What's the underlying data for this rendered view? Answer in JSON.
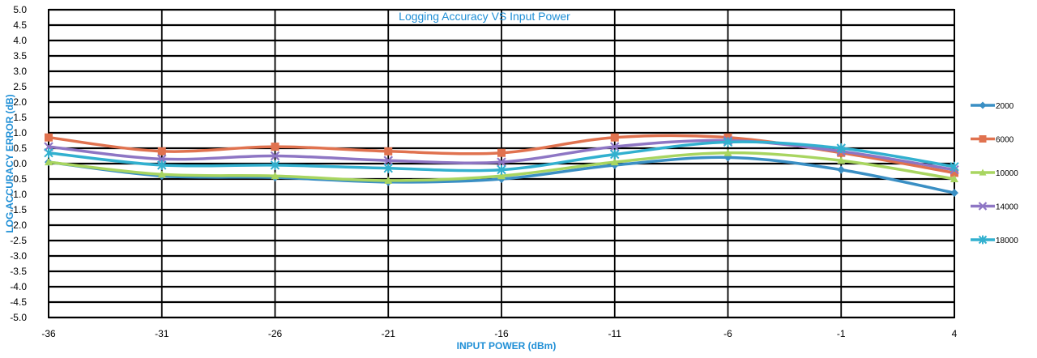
{
  "chart_data": {
    "type": "line",
    "title": "Logging Accuracy VS Input Power",
    "xlabel": "INPUT POWER (dBm)",
    "ylabel": "LOG ACCURACY ERROR (dB)",
    "x": [
      -36,
      -31,
      -26,
      -21,
      -16,
      -11,
      -6,
      -1,
      4
    ],
    "x_tick_labels": [
      "-36",
      "-31",
      "-26",
      "-21",
      "-16",
      "-11",
      "-6",
      "-1",
      "4"
    ],
    "ylim": [
      -5.0,
      5.0
    ],
    "y_tick_labels": [
      "5.0",
      "4.5",
      "4.0",
      "3.5",
      "3.0",
      "2.5",
      "2.0",
      "1.5",
      "1.0",
      "0.5",
      "0.0",
      "-0.5",
      "-1.0",
      "-1.5",
      "-2.0",
      "-2.5",
      "-3.0",
      "-3.5",
      "-4.0",
      "-4.5",
      "-5.0"
    ],
    "y_ticks": [
      5.0,
      4.5,
      4.0,
      3.5,
      3.0,
      2.5,
      2.0,
      1.5,
      1.0,
      0.5,
      0.0,
      -0.5,
      -1.0,
      -1.5,
      -2.0,
      -2.5,
      -3.0,
      -3.5,
      -4.0,
      -4.5,
      -5.0
    ],
    "grid": true,
    "legend_position": "right",
    "title_color": "#1f8fd6",
    "axis_title_color": "#1f8fd6",
    "series": [
      {
        "name": "2000",
        "color": "#3a8fc4",
        "marker": "diamond",
        "values": [
          0.05,
          -0.4,
          -0.45,
          -0.6,
          -0.5,
          -0.05,
          0.2,
          -0.2,
          -0.95
        ]
      },
      {
        "name": "6000",
        "color": "#e0724f",
        "marker": "square",
        "values": [
          0.85,
          0.4,
          0.55,
          0.4,
          0.35,
          0.85,
          0.85,
          0.35,
          -0.3
        ]
      },
      {
        "name": "10000",
        "color": "#a8d560",
        "marker": "triangle",
        "values": [
          0.05,
          -0.35,
          -0.4,
          -0.55,
          -0.4,
          0.05,
          0.35,
          0.1,
          -0.5
        ]
      },
      {
        "name": "14000",
        "color": "#8e76c4",
        "marker": "x",
        "values": [
          0.55,
          0.15,
          0.25,
          0.1,
          0.05,
          0.55,
          0.75,
          0.4,
          -0.2
        ]
      },
      {
        "name": "18000",
        "color": "#32b0cf",
        "marker": "star",
        "values": [
          0.35,
          -0.05,
          -0.05,
          -0.15,
          -0.2,
          0.3,
          0.7,
          0.5,
          -0.1
        ]
      }
    ]
  }
}
